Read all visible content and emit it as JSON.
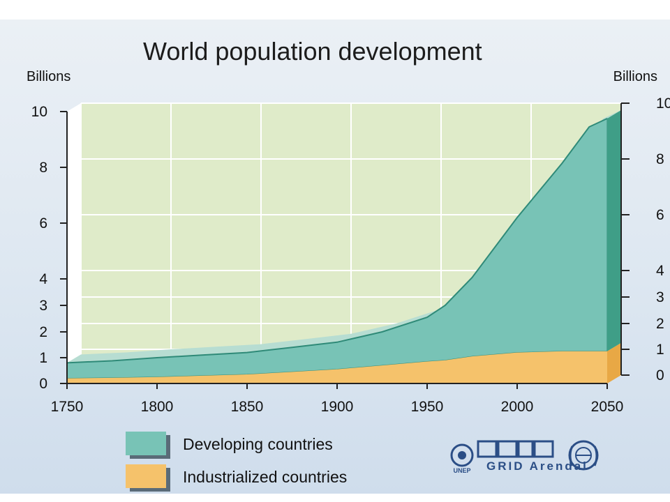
{
  "chart_data": {
    "type": "area",
    "title": "World population development",
    "ylabel_left": "Billions",
    "ylabel_right": "Billions",
    "x": [
      1750,
      1775,
      1800,
      1825,
      1850,
      1875,
      1900,
      1925,
      1950,
      1960,
      1975,
      2000,
      2025,
      2040,
      2050
    ],
    "xlim": [
      1750,
      2050
    ],
    "xticks": [
      "1750",
      "1800",
      "1850",
      "1900",
      "1950",
      "2000",
      "2050"
    ],
    "yticks": [
      "0",
      "1",
      "2",
      "3",
      "4",
      "6",
      "8",
      "10"
    ],
    "yticks_right": [
      "0",
      "1",
      "2",
      "3",
      "4",
      "6",
      "8",
      "10"
    ],
    "ylim": [
      0,
      10
    ],
    "series": [
      {
        "name": "Industrialized countries",
        "color": "#f5c26b",
        "values": [
          0.2,
          0.22,
          0.25,
          0.3,
          0.35,
          0.45,
          0.55,
          0.7,
          0.85,
          0.9,
          1.05,
          1.2,
          1.25,
          1.25,
          1.25
        ]
      },
      {
        "name": "Developing countries",
        "color": "#78c3b6",
        "values": [
          0.6,
          0.66,
          0.75,
          0.8,
          0.85,
          0.95,
          1.05,
          1.3,
          1.7,
          2.1,
          3.0,
          5.0,
          6.9,
          8.2,
          8.5
        ]
      }
    ],
    "legend": [
      {
        "label": "Developing countries",
        "color": "#78c3b6"
      },
      {
        "label": "Industrialized countries",
        "color": "#f5c26b"
      }
    ],
    "legend_position": "bottom-left",
    "grid": true
  },
  "logos": [
    {
      "name": "unep-logo",
      "text": "UNEP"
    },
    {
      "name": "grid-arendal-logo",
      "text": "GRID Arendal"
    },
    {
      "name": "un-emblem",
      "text": ""
    }
  ]
}
